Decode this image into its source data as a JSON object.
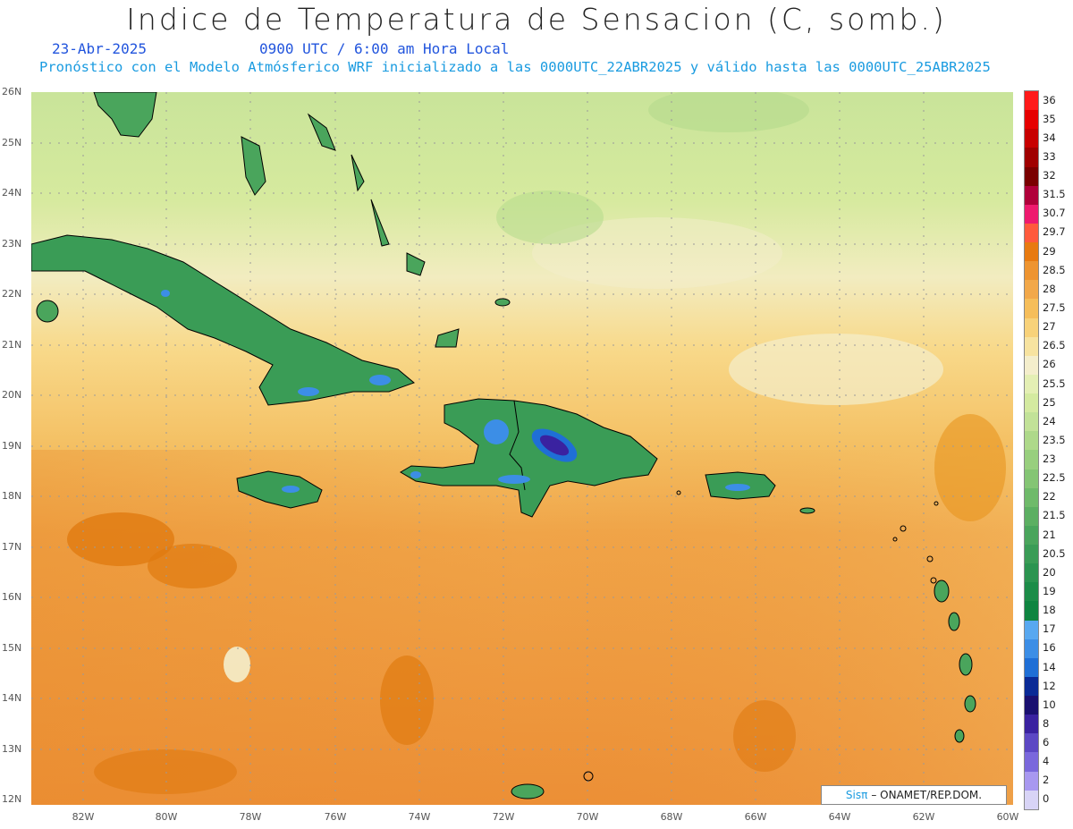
{
  "title": "Indice de Temperatura de Sensacion (C, somb.)",
  "date": "23-Abr-2025",
  "valid_time": "0900 UTC / 6:00 am Hora Local",
  "model_info": "Pronóstico con el Modelo Atmósferico WRF inicializado a las 0000UTC_22ABR2025 y válido hasta las  0000UTC_25ABR2025",
  "credit": {
    "sis": "Sisπ",
    "org": "– ONAMET/REP.DOM."
  },
  "lat_labels": [
    "26N",
    "25N",
    "24N",
    "23N",
    "22N",
    "21N",
    "20N",
    "19N",
    "18N",
    "17N",
    "16N",
    "15N",
    "14N",
    "13N",
    "12N"
  ],
  "lon_labels": [
    "82W",
    "80W",
    "78W",
    "76W",
    "74W",
    "72W",
    "70W",
    "68W",
    "66W",
    "64W",
    "62W",
    "60W"
  ],
  "colorbar": {
    "labels": [
      "36",
      "35",
      "34",
      "33",
      "32",
      "31.5",
      "30.7",
      "29.7",
      "29",
      "28.5",
      "28",
      "27.5",
      "27",
      "26.5",
      "26",
      "25.5",
      "25",
      "24",
      "23.5",
      "23",
      "22.5",
      "22",
      "21.5",
      "21",
      "20.5",
      "20",
      "19",
      "18",
      "17",
      "16",
      "14",
      "12",
      "10",
      "8",
      "6",
      "4",
      "2",
      "0"
    ],
    "colors": [
      "#ff1a1a",
      "#e60000",
      "#c80000",
      "#a00000",
      "#7a0000",
      "#b0003a",
      "#ee1a6e",
      "#ff5a3c",
      "#e87a10",
      "#ee9430",
      "#f2a84a",
      "#f6be5a",
      "#f8d27a",
      "#f7e3a0",
      "#f4eecc",
      "#e4efb4",
      "#d4eaa0",
      "#c2e298",
      "#aed98a",
      "#98cf7e",
      "#84c574",
      "#6fba6a",
      "#5caf62",
      "#4aa55c",
      "#3a9c56",
      "#2b9450",
      "#1c8c48",
      "#0e8440",
      "#58a8f0",
      "#3c8ee6",
      "#1f6fd6",
      "#0a2a96",
      "#1a1070",
      "#3a22a0",
      "#5c48c4",
      "#7a68dc",
      "#a898f0",
      "#d8d4f6"
    ]
  }
}
